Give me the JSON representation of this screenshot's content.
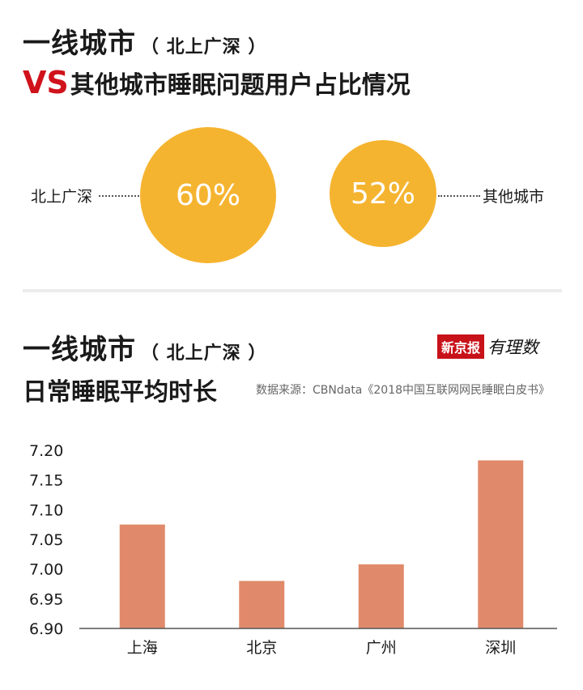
{
  "section1": {
    "title_main": "一线城市",
    "title_paren": "（ 北上广深 ）",
    "subtitle_vs": "VS",
    "subtitle_rest": "其他城市睡眠问题用户占比情况",
    "left_label": "北上广深",
    "left_value": "60%",
    "right_label": "其他城市",
    "right_value": "52%",
    "values": [
      60,
      52
    ],
    "bubble_color": "#f5b430"
  },
  "section2": {
    "title_main": "一线城市",
    "title_paren": "（ 北上广深 ）",
    "subtitle": "日常睡眠平均时长",
    "source": "数据来源：CBNdata《2018中国互联网网民睡眠白皮书》",
    "logo_text": "新京报",
    "logo_script": "有理数"
  },
  "chart_data": {
    "type": "bar",
    "categories": [
      "上海",
      "北京",
      "广州",
      "深圳"
    ],
    "values": [
      7.075,
      6.98,
      7.008,
      7.183
    ],
    "ylim": [
      6.9,
      7.2
    ],
    "yticks": [
      "6.90",
      "6.95",
      "7.00",
      "7.05",
      "7.10",
      "7.15",
      "7.20"
    ],
    "bar_color": "#e08a6b",
    "grid": false
  }
}
